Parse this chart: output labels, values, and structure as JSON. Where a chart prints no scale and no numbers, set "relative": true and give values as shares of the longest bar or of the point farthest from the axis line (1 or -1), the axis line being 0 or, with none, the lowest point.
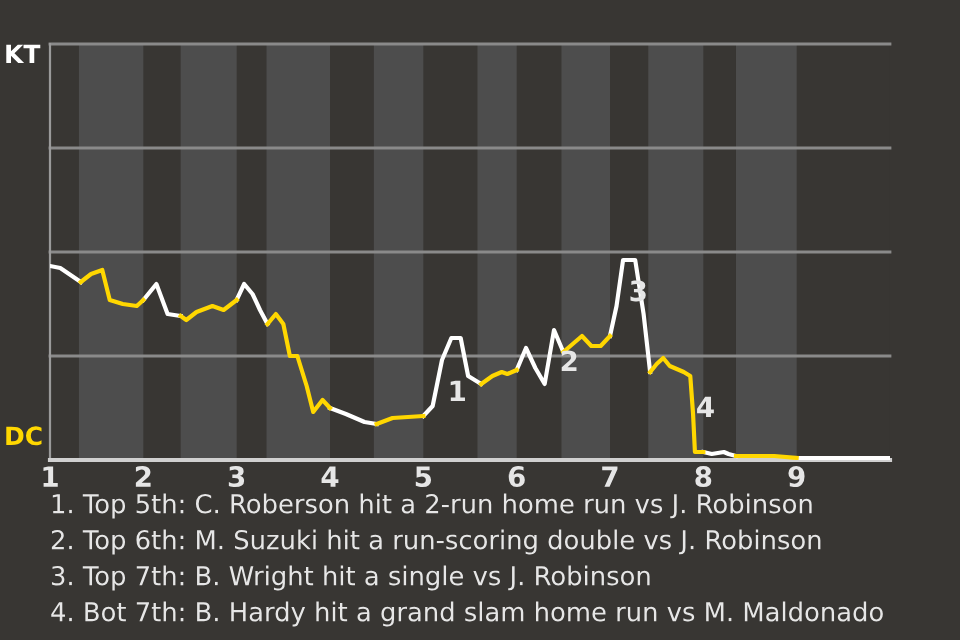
{
  "chart_data": {
    "type": "line",
    "relative": true,
    "xlim": [
      1,
      10
    ],
    "xticks": [
      1,
      2,
      3,
      4,
      5,
      6,
      7,
      8,
      9
    ],
    "ref_lines": [
      {
        "axis": "y",
        "value": 0.52,
        "color": "#8a8a8a"
      },
      {
        "axis": "y",
        "value": 1.04,
        "color": "#8a8a8a"
      },
      {
        "axis": "y",
        "value": 1.56,
        "color": "#8a8a8a"
      },
      {
        "axis": "y",
        "value": 2.08,
        "color": "#8a8a8a"
      }
    ],
    "series": [
      {
        "color": "#ffffff",
        "x": [
          1,
          1.11,
          1.33,
          null,
          2,
          2.14,
          2.26,
          2.4,
          null,
          3,
          3.08,
          3.17,
          3.25,
          3.33,
          null,
          4,
          4.17,
          4.37,
          4.5,
          null,
          5,
          5.1,
          5.2,
          5.3,
          5.4,
          5.48,
          5.62,
          null,
          6,
          6.1,
          6.2,
          6.3,
          6.4,
          6.5,
          null,
          7,
          7.07,
          7.14,
          7.27,
          7.36,
          7.43,
          null,
          8,
          8.09,
          8.22,
          8.27,
          8.35,
          null,
          9,
          10
        ],
        "values": [
          0.97,
          0.96,
          0.89,
          null,
          0.8,
          0.88,
          0.73,
          0.72,
          null,
          0.8,
          0.88,
          0.83,
          0.75,
          0.68,
          null,
          0.26,
          0.23,
          0.19,
          0.18,
          null,
          0.22,
          0.27,
          0.5,
          0.61,
          0.61,
          0.42,
          0.38,
          null,
          0.45,
          0.56,
          0.46,
          0.38,
          0.65,
          0.54,
          null,
          0.62,
          0.77,
          1,
          1,
          0.73,
          0.44,
          null,
          0.04,
          0.03,
          0.04,
          0.03,
          0.02,
          null,
          0.01,
          0.01
        ]
      },
      {
        "color": "#ffd700",
        "x": [
          1.33,
          1.44,
          1.56,
          1.64,
          1.78,
          1.93,
          2,
          null,
          2.4,
          2.46,
          2.57,
          2.74,
          2.86,
          3,
          null,
          3.33,
          3.42,
          3.5,
          3.57,
          3.65,
          3.75,
          3.82,
          3.92,
          4,
          null,
          4.5,
          4.67,
          5,
          null,
          5.62,
          5.74,
          5.84,
          5.9,
          6,
          null,
          6.5,
          6.6,
          6.7,
          6.8,
          6.9,
          7,
          null,
          7.43,
          7.5,
          7.57,
          7.64,
          7.79,
          7.86,
          7.89,
          7.91,
          8,
          null,
          8.35,
          8.64,
          8.76,
          9
        ],
        "values": [
          0.89,
          0.93,
          0.95,
          0.8,
          0.78,
          0.77,
          0.8,
          null,
          0.72,
          0.7,
          0.74,
          0.77,
          0.75,
          0.8,
          null,
          0.68,
          0.73,
          0.68,
          0.52,
          0.52,
          0.37,
          0.24,
          0.3,
          0.26,
          null,
          0.18,
          0.21,
          0.22,
          null,
          0.38,
          0.42,
          0.44,
          0.43,
          0.45,
          null,
          0.54,
          0.58,
          0.62,
          0.57,
          0.57,
          0.62,
          null,
          0.44,
          0.48,
          0.51,
          0.47,
          0.44,
          0.42,
          0.23,
          0.04,
          0.04,
          null,
          0.02,
          0.02,
          0.02,
          0.01
        ]
      }
    ],
    "bands": [
      {
        "axis": "x",
        "from": 1.31,
        "to": 2,
        "color": "#4d4d4d"
      },
      {
        "axis": "x",
        "from": 2.4,
        "to": 3,
        "color": "#4d4d4d"
      },
      {
        "axis": "x",
        "from": 3.32,
        "to": 4,
        "color": "#4d4d4d"
      },
      {
        "axis": "x",
        "from": 4.47,
        "to": 5,
        "color": "#4d4d4d"
      },
      {
        "axis": "x",
        "from": 5.58,
        "to": 6,
        "color": "#4d4d4d"
      },
      {
        "axis": "x",
        "from": 6.48,
        "to": 7,
        "color": "#4d4d4d"
      },
      {
        "axis": "x",
        "from": 7.41,
        "to": 8,
        "color": "#4d4d4d"
      },
      {
        "axis": "x",
        "from": 8.35,
        "to": 9,
        "color": "#4d4d4d"
      }
    ],
    "annotations": [
      "KT",
      "DC",
      {
        "text": "1",
        "x": 5.2,
        "y": 0.5
      },
      {
        "text": "2",
        "x": 6.4,
        "y": 0.65
      },
      {
        "text": "3",
        "x": 7.14,
        "y": 1
      },
      {
        "text": "4",
        "x": 7.86,
        "y": 0.42
      },
      "1. Top 5th: C. Roberson hit a 2-run home run vs J. Robinson",
      "2. Top 6th: M. Suzuki hit a run-scoring double vs J. Robinson",
      "3. Top 7th: B. Wright hit a single vs J. Robinson",
      "4. Bot 7th: B. Hardy hit a grand slam home run vs M. Maldonado"
    ]
  }
}
